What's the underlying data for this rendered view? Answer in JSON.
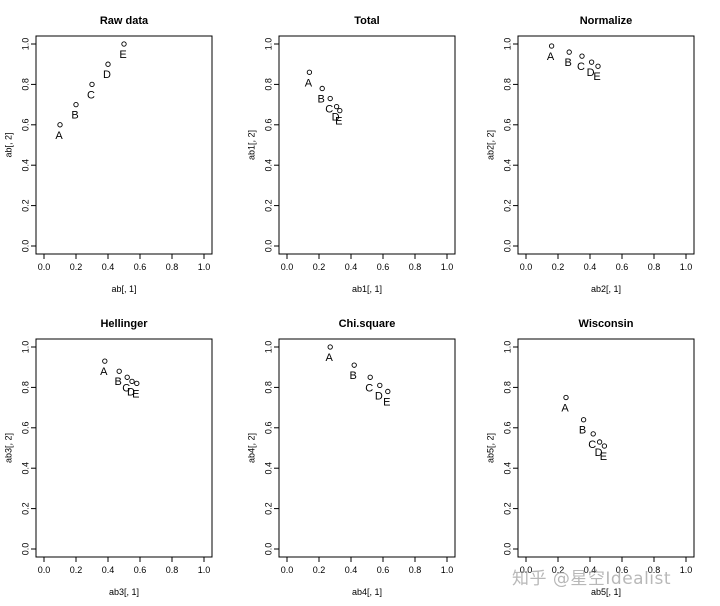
{
  "chart_data": [
    {
      "type": "scatter",
      "title": "Raw data",
      "xlabel": "ab[, 1]",
      "ylabel": "ab[, 2]",
      "xlim": [
        0,
        1
      ],
      "ylim": [
        0,
        1
      ],
      "xticks": [
        "0.0",
        "0.2",
        "0.4",
        "0.6",
        "0.8",
        "1.0"
      ],
      "yticks": [
        "0.0",
        "0.2",
        "0.4",
        "0.6",
        "0.8",
        "1.0"
      ],
      "grid": false,
      "points": [
        {
          "label": "A",
          "x": 0.1,
          "y": 0.6
        },
        {
          "label": "B",
          "x": 0.2,
          "y": 0.7
        },
        {
          "label": "C",
          "x": 0.3,
          "y": 0.8
        },
        {
          "label": "D",
          "x": 0.4,
          "y": 0.9
        },
        {
          "label": "E",
          "x": 0.5,
          "y": 1.0
        }
      ]
    },
    {
      "type": "scatter",
      "title": "Total",
      "xlabel": "ab1[, 1]",
      "ylabel": "ab1[, 2]",
      "xlim": [
        0,
        1
      ],
      "ylim": [
        0,
        1
      ],
      "xticks": [
        "0.0",
        "0.2",
        "0.4",
        "0.6",
        "0.8",
        "1.0"
      ],
      "yticks": [
        "0.0",
        "0.2",
        "0.4",
        "0.6",
        "0.8",
        "1.0"
      ],
      "grid": false,
      "points": [
        {
          "label": "A",
          "x": 0.14,
          "y": 0.86
        },
        {
          "label": "B",
          "x": 0.22,
          "y": 0.78
        },
        {
          "label": "C",
          "x": 0.27,
          "y": 0.73
        },
        {
          "label": "D",
          "x": 0.31,
          "y": 0.69
        },
        {
          "label": "E",
          "x": 0.33,
          "y": 0.67
        }
      ]
    },
    {
      "type": "scatter",
      "title": "Normalize",
      "xlabel": "ab2[, 1]",
      "ylabel": "ab2[, 2]",
      "xlim": [
        0,
        1
      ],
      "ylim": [
        0,
        1
      ],
      "xticks": [
        "0.0",
        "0.2",
        "0.4",
        "0.6",
        "0.8",
        "1.0"
      ],
      "yticks": [
        "0.0",
        "0.2",
        "0.4",
        "0.6",
        "0.8",
        "1.0"
      ],
      "grid": false,
      "points": [
        {
          "label": "A",
          "x": 0.16,
          "y": 0.99
        },
        {
          "label": "B",
          "x": 0.27,
          "y": 0.96
        },
        {
          "label": "C",
          "x": 0.35,
          "y": 0.94
        },
        {
          "label": "D",
          "x": 0.41,
          "y": 0.91
        },
        {
          "label": "E",
          "x": 0.45,
          "y": 0.89
        }
      ]
    },
    {
      "type": "scatter",
      "title": "Hellinger",
      "xlabel": "ab3[, 1]",
      "ylabel": "ab3[, 2]",
      "xlim": [
        0,
        1
      ],
      "ylim": [
        0,
        1
      ],
      "xticks": [
        "0.0",
        "0.2",
        "0.4",
        "0.6",
        "0.8",
        "1.0"
      ],
      "yticks": [
        "0.0",
        "0.2",
        "0.4",
        "0.6",
        "0.8",
        "1.0"
      ],
      "grid": false,
      "points": [
        {
          "label": "A",
          "x": 0.38,
          "y": 0.93
        },
        {
          "label": "B",
          "x": 0.47,
          "y": 0.88
        },
        {
          "label": "C",
          "x": 0.52,
          "y": 0.85
        },
        {
          "label": "D",
          "x": 0.55,
          "y": 0.83
        },
        {
          "label": "E",
          "x": 0.58,
          "y": 0.82
        }
      ]
    },
    {
      "type": "scatter",
      "title": "Chi.square",
      "xlabel": "ab4[, 1]",
      "ylabel": "ab4[, 2]",
      "xlim": [
        0,
        1
      ],
      "ylim": [
        0,
        1
      ],
      "xticks": [
        "0.0",
        "0.2",
        "0.4",
        "0.6",
        "0.8",
        "1.0"
      ],
      "yticks": [
        "0.0",
        "0.2",
        "0.4",
        "0.6",
        "0.8",
        "1.0"
      ],
      "grid": false,
      "points": [
        {
          "label": "A",
          "x": 0.27,
          "y": 1.0
        },
        {
          "label": "B",
          "x": 0.42,
          "y": 0.91
        },
        {
          "label": "C",
          "x": 0.52,
          "y": 0.85
        },
        {
          "label": "D",
          "x": 0.58,
          "y": 0.81
        },
        {
          "label": "E",
          "x": 0.63,
          "y": 0.78
        }
      ]
    },
    {
      "type": "scatter",
      "title": "Wisconsin",
      "xlabel": "ab5[, 1]",
      "ylabel": "ab5[, 2]",
      "xlim": [
        0,
        1
      ],
      "ylim": [
        0,
        1
      ],
      "xticks": [
        "0.0",
        "0.2",
        "0.4",
        "0.6",
        "0.8",
        "1.0"
      ],
      "yticks": [
        "0.0",
        "0.2",
        "0.4",
        "0.6",
        "0.8",
        "1.0"
      ],
      "grid": false,
      "points": [
        {
          "label": "A",
          "x": 0.25,
          "y": 0.75
        },
        {
          "label": "B",
          "x": 0.36,
          "y": 0.64
        },
        {
          "label": "C",
          "x": 0.42,
          "y": 0.57
        },
        {
          "label": "D",
          "x": 0.46,
          "y": 0.53
        },
        {
          "label": "E",
          "x": 0.49,
          "y": 0.51
        }
      ]
    }
  ],
  "watermark": "知乎 @星空Idealist"
}
